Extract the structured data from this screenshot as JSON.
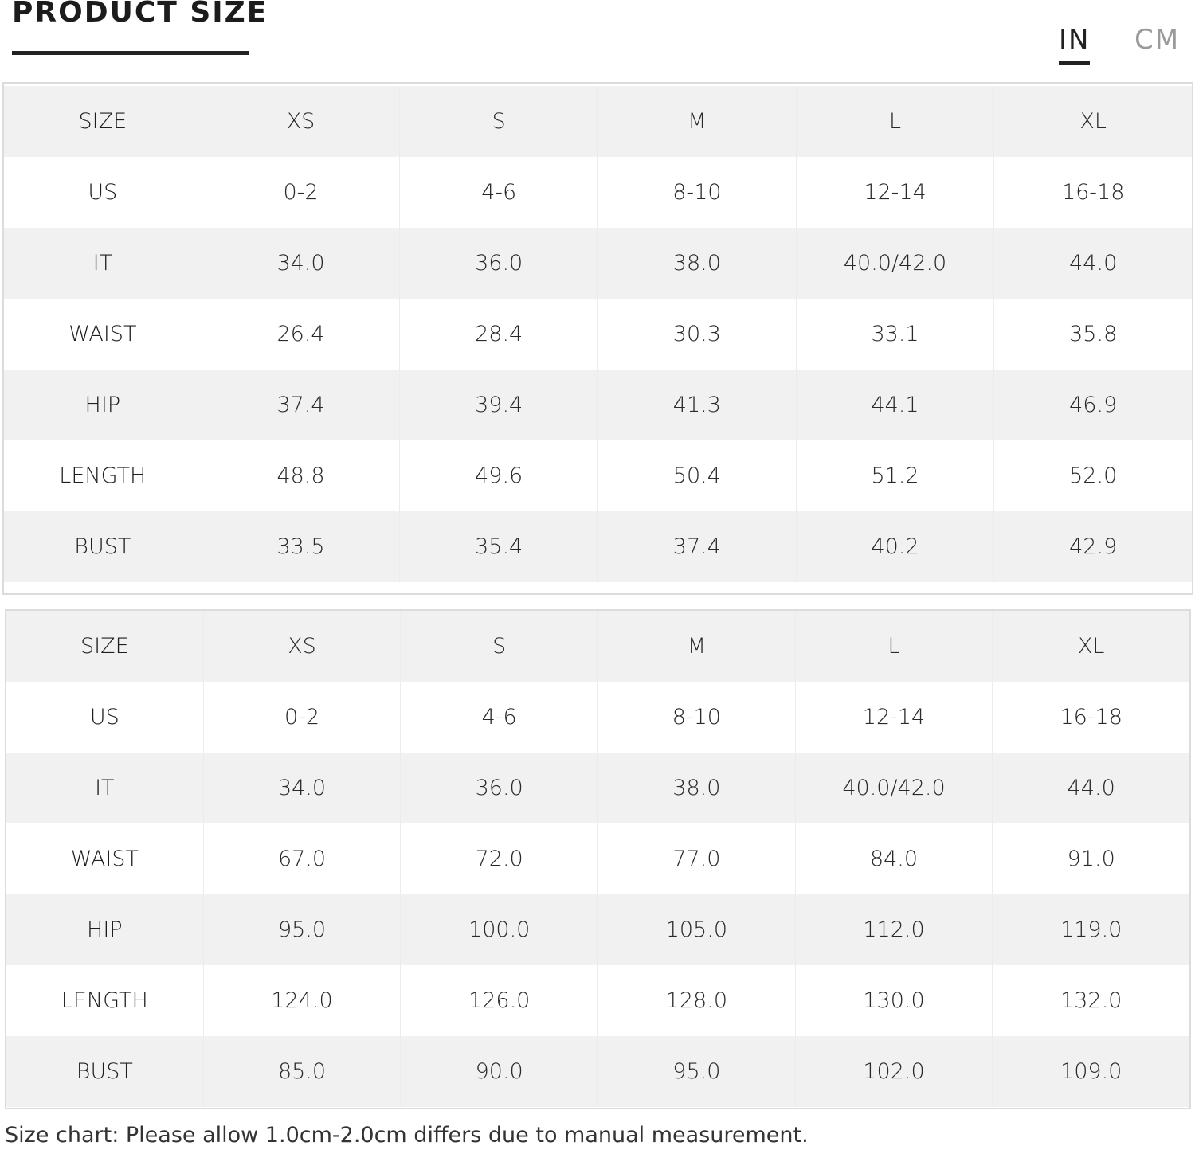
{
  "header": {
    "title": "PRODUCT SIZE",
    "units": [
      "IN",
      "CM"
    ],
    "active_unit": "IN"
  },
  "tables": [
    {
      "unit": "IN",
      "rows": [
        [
          "SIZE",
          "XS",
          "S",
          "M",
          "L",
          "XL"
        ],
        [
          "US",
          "0-2",
          "4-6",
          "8-10",
          "12-14",
          "16-18"
        ],
        [
          "IT",
          "34.0",
          "36.0",
          "38.0",
          "40.0/42.0",
          "44.0"
        ],
        [
          "WAIST",
          "26.4",
          "28.4",
          "30.3",
          "33.1",
          "35.8"
        ],
        [
          "HIP",
          "37.4",
          "39.4",
          "41.3",
          "44.1",
          "46.9"
        ],
        [
          "LENGTH",
          "48.8",
          "49.6",
          "50.4",
          "51.2",
          "52.0"
        ],
        [
          "BUST",
          "33.5",
          "35.4",
          "37.4",
          "40.2",
          "42.9"
        ]
      ]
    },
    {
      "unit": "CM",
      "rows": [
        [
          "SIZE",
          "XS",
          "S",
          "M",
          "L",
          "XL"
        ],
        [
          "US",
          "0-2",
          "4-6",
          "8-10",
          "12-14",
          "16-18"
        ],
        [
          "IT",
          "34.0",
          "36.0",
          "38.0",
          "40.0/42.0",
          "44.0"
        ],
        [
          "WAIST",
          "67.0",
          "72.0",
          "77.0",
          "84.0",
          "91.0"
        ],
        [
          "HIP",
          "95.0",
          "100.0",
          "105.0",
          "112.0",
          "119.0"
        ],
        [
          "LENGTH",
          "124.0",
          "126.0",
          "128.0",
          "130.0",
          "132.0"
        ],
        [
          "BUST",
          "85.0",
          "90.0",
          "95.0",
          "102.0",
          "109.0"
        ]
      ]
    }
  ],
  "note": "Size chart: Please allow 1.0cm-2.0cm differs due to manual measurement."
}
